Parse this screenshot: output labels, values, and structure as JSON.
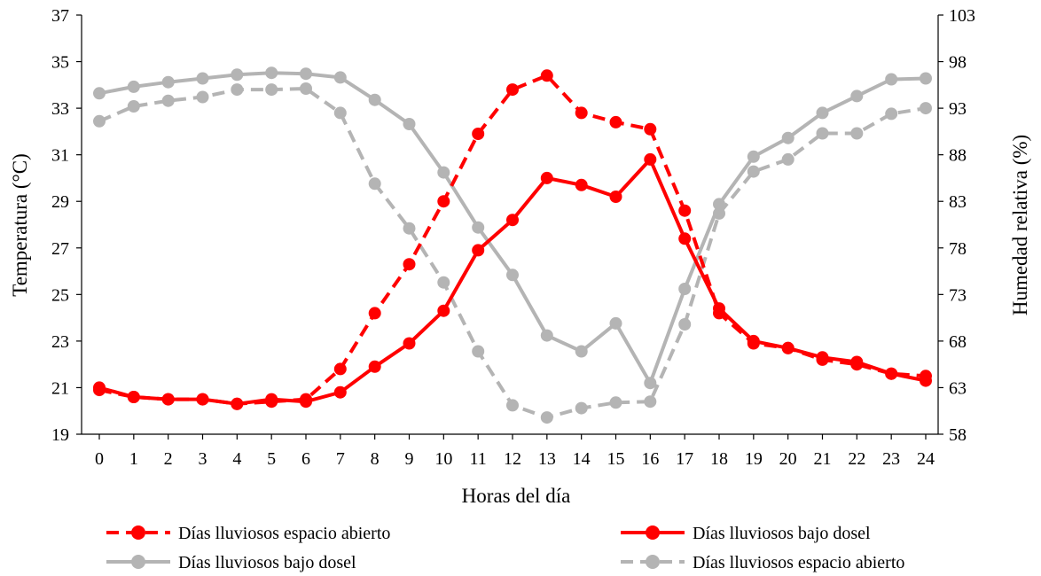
{
  "chart_data": {
    "type": "line",
    "xlabel": "Horas del día",
    "ylabel_left": "Temperatura (°C)",
    "ylabel_right": "Humedad relativa (%)",
    "x": [
      0,
      1,
      2,
      3,
      4,
      5,
      6,
      7,
      8,
      9,
      10,
      11,
      12,
      13,
      14,
      15,
      16,
      17,
      18,
      19,
      20,
      21,
      22,
      23,
      24
    ],
    "y_left_ticks": [
      "19",
      "21",
      "23",
      "25",
      "27",
      "29",
      "31",
      "33",
      "35",
      "37"
    ],
    "y_right_ticks": [
      "58",
      "63",
      "68",
      "73",
      "78",
      "83",
      "88",
      "93",
      "98",
      "103"
    ],
    "ylim_left": [
      19,
      37
    ],
    "ylim_right": [
      58,
      103
    ],
    "grid": false,
    "legend_position": "bottom",
    "series": [
      {
        "name": "Días lluviosos espacio abierto",
        "axis": "left",
        "color": "#ff0000",
        "dash": "dashed",
        "values": [
          20.9,
          20.6,
          20.5,
          20.5,
          20.3,
          20.4,
          20.5,
          21.8,
          24.2,
          26.3,
          29.0,
          31.9,
          33.8,
          34.4,
          32.8,
          32.4,
          32.1,
          28.6,
          24.2,
          22.9,
          22.7,
          22.2,
          22.0,
          21.6,
          21.5
        ]
      },
      {
        "name": "Días lluviosos bajo dosel",
        "axis": "left",
        "color": "#ff0000",
        "dash": "solid",
        "values": [
          21.0,
          20.6,
          20.5,
          20.5,
          20.3,
          20.5,
          20.4,
          20.8,
          21.9,
          22.9,
          24.3,
          26.9,
          28.2,
          30.0,
          29.7,
          29.2,
          30.8,
          27.4,
          24.4,
          23.0,
          22.7,
          22.3,
          22.1,
          21.6,
          21.3
        ]
      },
      {
        "name": "Días lluviosos bajo dosel",
        "axis": "right",
        "color": "#b4b4b4",
        "dash": "solid",
        "values": [
          94.6,
          95.3,
          95.8,
          96.2,
          96.6,
          96.8,
          96.7,
          96.3,
          93.9,
          91.3,
          86.1,
          80.2,
          75.1,
          68.6,
          66.9,
          69.9,
          63.5,
          73.6,
          82.7,
          87.8,
          89.8,
          92.5,
          94.3,
          96.1,
          96.2
        ]
      },
      {
        "name": "Días lluviosos espacio abierto",
        "axis": "right",
        "color": "#b4b4b4",
        "dash": "dashed",
        "values": [
          91.6,
          93.2,
          93.8,
          94.2,
          95.0,
          95.0,
          95.1,
          92.5,
          84.9,
          80.1,
          74.3,
          66.9,
          61.1,
          59.8,
          60.8,
          61.4,
          61.5,
          69.8,
          81.7,
          86.2,
          87.5,
          90.3,
          90.3,
          92.4,
          93.0
        ]
      }
    ]
  }
}
